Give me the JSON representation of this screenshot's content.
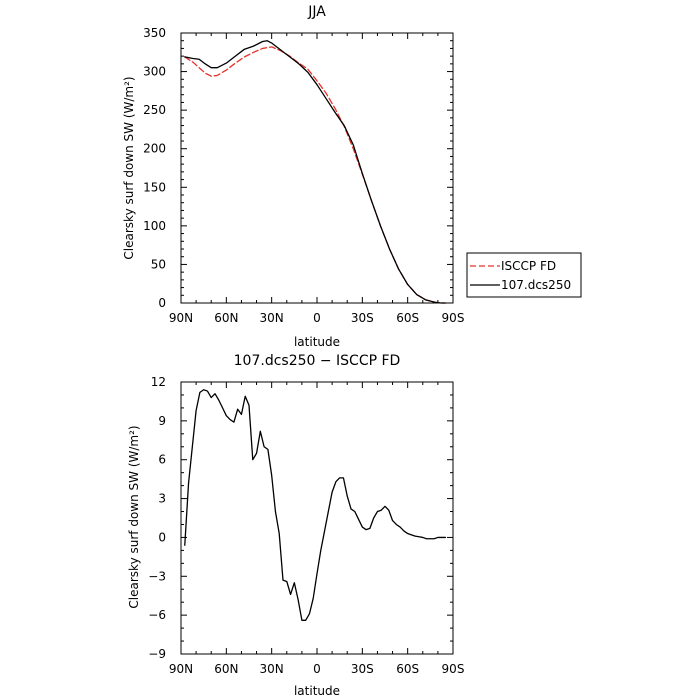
{
  "chart_data": [
    {
      "type": "line",
      "title": "JJA",
      "xlabel": "latitude",
      "ylabel": "Clearsky surf down SW (W/m²)",
      "xlim": [
        90,
        -90
      ],
      "ylim": [
        0,
        350
      ],
      "x_ticks": [
        90,
        60,
        30,
        0,
        -30,
        -60,
        -90
      ],
      "x_tick_labels": [
        "90N",
        "60N",
        "30N",
        "0",
        "30S",
        "60S",
        "90S"
      ],
      "y_ticks": [
        0,
        50,
        100,
        150,
        200,
        250,
        300,
        350
      ],
      "y_tick_labels": [
        "0",
        "50",
        "100",
        "150",
        "200",
        "250",
        "300",
        "350"
      ],
      "grid": false,
      "legend": {
        "placement": "right",
        "entries": [
          {
            "label": "ISCCP FD",
            "color": "#e8322b",
            "dash": "6,3"
          },
          {
            "label": "107.dcs250",
            "color": "#000000",
            "dash": ""
          }
        ]
      },
      "series": [
        {
          "name": "ISCCP FD",
          "color": "#e8322b",
          "dash": "6,3",
          "x": [
            87.5,
            82,
            78,
            74,
            70,
            66,
            60,
            54,
            48,
            42,
            36,
            30,
            24,
            18,
            12,
            6,
            0,
            -6,
            -12,
            -18,
            -24,
            -30,
            -36,
            -42,
            -48,
            -54,
            -60,
            -66,
            -72,
            -78,
            -82,
            -85
          ],
          "y": [
            319,
            312,
            305,
            298,
            294,
            295,
            302,
            311,
            319,
            325,
            330,
            332,
            327,
            320,
            311,
            303,
            288,
            272,
            252,
            229,
            200,
            167,
            133,
            100,
            70,
            44,
            24,
            11,
            4,
            1,
            0,
            0
          ]
        },
        {
          "name": "107.dcs250",
          "color": "#000000",
          "dash": "",
          "x": [
            87.5,
            82,
            78,
            74,
            70,
            66,
            60,
            54,
            48,
            42,
            36,
            33,
            30,
            24,
            18,
            12,
            6,
            0,
            -6,
            -12,
            -18,
            -24,
            -30,
            -36,
            -42,
            -48,
            -54,
            -60,
            -66,
            -72,
            -78,
            -82,
            -85
          ],
          "y": [
            319,
            317,
            316,
            310,
            305,
            305,
            311,
            320,
            329,
            333,
            339,
            340,
            337,
            328,
            319,
            310,
            299,
            283,
            265,
            247,
            230,
            205,
            168,
            133,
            100,
            70,
            44,
            24,
            11,
            4,
            1,
            0,
            0
          ]
        }
      ]
    },
    {
      "type": "line",
      "title": "107.dcs250 − ISCCP FD",
      "xlabel": "latitude",
      "ylabel": "Clearsky surf down SW (W/m²)",
      "xlim": [
        90,
        -90
      ],
      "ylim": [
        -9,
        12
      ],
      "x_ticks": [
        90,
        60,
        30,
        0,
        -30,
        -60,
        -90
      ],
      "x_tick_labels": [
        "90N",
        "60N",
        "30N",
        "0",
        "30S",
        "60S",
        "90S"
      ],
      "y_ticks": [
        -9,
        -6,
        -3,
        0,
        3,
        6,
        9,
        12
      ],
      "y_tick_labels": [
        "−9",
        "−6",
        "−3",
        "0",
        "3",
        "6",
        "9",
        "12"
      ],
      "grid": false,
      "series": [
        {
          "color": "#000000",
          "dash": "",
          "x": [
            87.5,
            85,
            82.5,
            80,
            77.5,
            75,
            72.5,
            70,
            67.5,
            65,
            62.5,
            60,
            57.5,
            55,
            52.5,
            50,
            47.5,
            45,
            42.5,
            40,
            37.5,
            35,
            32.5,
            30,
            27.5,
            25,
            22.5,
            20,
            17.5,
            15,
            12.5,
            10,
            7.5,
            5,
            2.5,
            0,
            -2.5,
            -5,
            -7.5,
            -10,
            -12.5,
            -15,
            -17.5,
            -20,
            -22.5,
            -25,
            -27.5,
            -30,
            -32.5,
            -35,
            -37.5,
            -40,
            -42.5,
            -45,
            -47.5,
            -50,
            -52.5,
            -55,
            -57.5,
            -60,
            -62.5,
            -65,
            -67.5,
            -70,
            -72.5,
            -75,
            -77.5,
            -80,
            -82.5,
            -85
          ],
          "y": [
            -0.6,
            4.2,
            7.0,
            9.8,
            11.2,
            11.4,
            11.3,
            10.8,
            11.1,
            10.6,
            10.0,
            9.4,
            9.1,
            8.9,
            9.9,
            9.5,
            10.9,
            10.2,
            6.0,
            6.5,
            8.2,
            7.0,
            6.8,
            4.8,
            2.0,
            0.3,
            -3.3,
            -3.4,
            -4.4,
            -3.5,
            -4.8,
            -6.4,
            -6.4,
            -5.9,
            -4.7,
            -2.8,
            -1.0,
            0.5,
            2.0,
            3.5,
            4.3,
            4.6,
            4.6,
            3.2,
            2.2,
            2.0,
            1.4,
            0.8,
            0.6,
            0.7,
            1.5,
            2.0,
            2.1,
            2.4,
            2.1,
            1.3,
            1.0,
            0.8,
            0.5,
            0.3,
            0.2,
            0.1,
            0.05,
            0.0,
            -0.1,
            -0.1,
            -0.1,
            0.0,
            0.0,
            0.0
          ]
        }
      ]
    }
  ]
}
